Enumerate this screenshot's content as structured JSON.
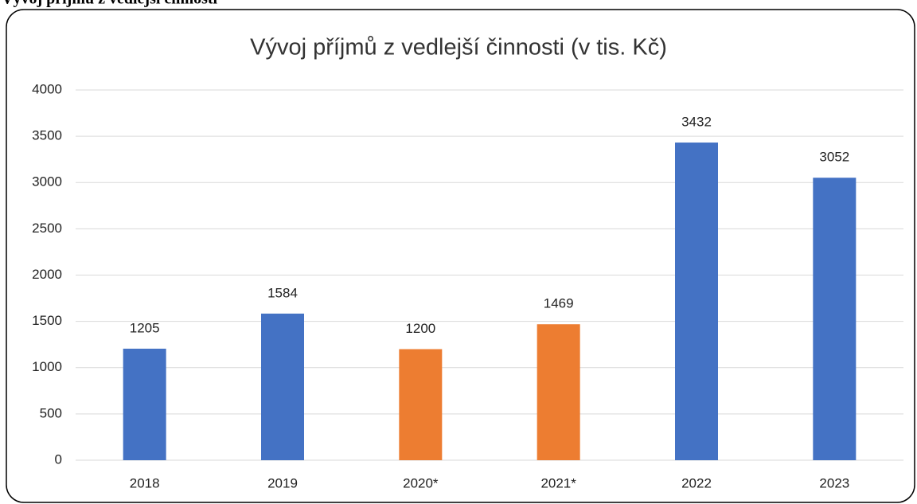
{
  "heading": "Vývoj příjmů z vedlejší činnosti",
  "chart_data": {
    "type": "bar",
    "title": "Vývoj příjmů z vedlejší činnosti (v tis. Kč)",
    "categories": [
      "2018",
      "2019",
      "2020*",
      "2021*",
      "2022",
      "2023"
    ],
    "values": [
      1205,
      1584,
      1200,
      1469,
      3432,
      3052
    ],
    "colors": [
      "#4472c4",
      "#4472c4",
      "#ed7d31",
      "#ed7d31",
      "#4472c4",
      "#4472c4"
    ],
    "ylim": [
      0,
      4000
    ],
    "yticks": [
      0,
      500,
      1000,
      1500,
      2000,
      2500,
      3000,
      3500,
      4000
    ],
    "grid": true,
    "data_labels": true
  }
}
